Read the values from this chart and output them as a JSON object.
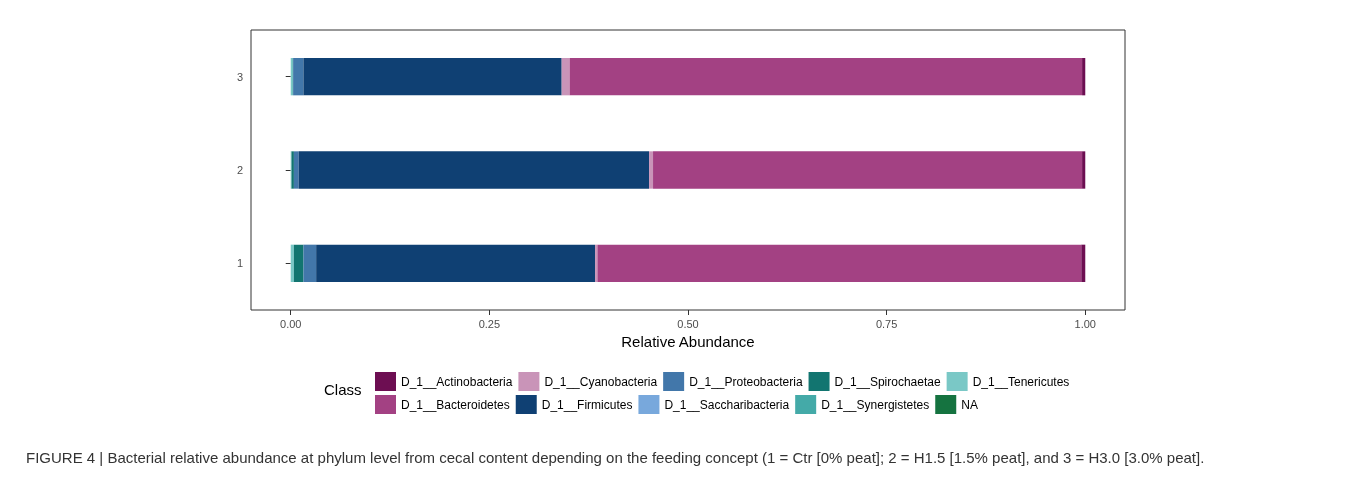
{
  "chart_data": {
    "type": "bar",
    "orientation": "horizontal",
    "stacked": true,
    "xlabel": "Relative Abundance",
    "legend_title": "Class",
    "legend": "bottom",
    "grid": false,
    "categories": [
      "3",
      "2",
      "1"
    ],
    "xlim": [
      -0.05,
      1.05
    ],
    "xticks": [
      {
        "value": 0,
        "label": "0.00"
      },
      {
        "value": 0.25,
        "label": "0.25"
      },
      {
        "value": 0.5,
        "label": "0.50"
      },
      {
        "value": 0.75,
        "label": "0.75"
      },
      {
        "value": 1,
        "label": "1.00"
      }
    ],
    "series": [
      {
        "name": "NA",
        "color": "#157340",
        "values": [
          0,
          0,
          0
        ]
      },
      {
        "name": "D_1__Tenericutes",
        "color": "#7ac8c6",
        "values": [
          0.002,
          0.001,
          0.004
        ]
      },
      {
        "name": "D_1__Synergistetes",
        "color": "#44aaa8",
        "values": [
          0.001,
          0,
          0
        ]
      },
      {
        "name": "D_1__Spirochaetae",
        "color": "#127570",
        "values": [
          0,
          0.003,
          0.012
        ]
      },
      {
        "name": "D_1__Saccharibacteria",
        "color": "#78a8dc",
        "values": [
          0,
          0,
          0
        ]
      },
      {
        "name": "D_1__Proteobacteria",
        "color": "#4277aa",
        "values": [
          0.013,
          0.006,
          0.016
        ]
      },
      {
        "name": "D_1__Firmicutes",
        "color": "#0f4073",
        "values": [
          0.325,
          0.441,
          0.351
        ]
      },
      {
        "name": "D_1__Cyanobacteria",
        "color": "#c994b8",
        "values": [
          0.01,
          0.005,
          0.003
        ]
      },
      {
        "name": "D_1__Bacteroidetes",
        "color": "#a34183",
        "values": [
          0.645,
          0.54,
          0.609
        ]
      },
      {
        "name": "D_1__Actinobacteria",
        "color": "#6d0e52",
        "values": [
          0.004,
          0.004,
          0.005
        ]
      }
    ],
    "annotations": [
      "FIGURE 4 | Bacterial relative abundance at phylum level from cecal content depending on the feeding concept (1 = Ctr [0% peat]; 2 = H1.5 [1.5% peat], and 3 = H3.0 [3.0% peat]."
    ]
  }
}
